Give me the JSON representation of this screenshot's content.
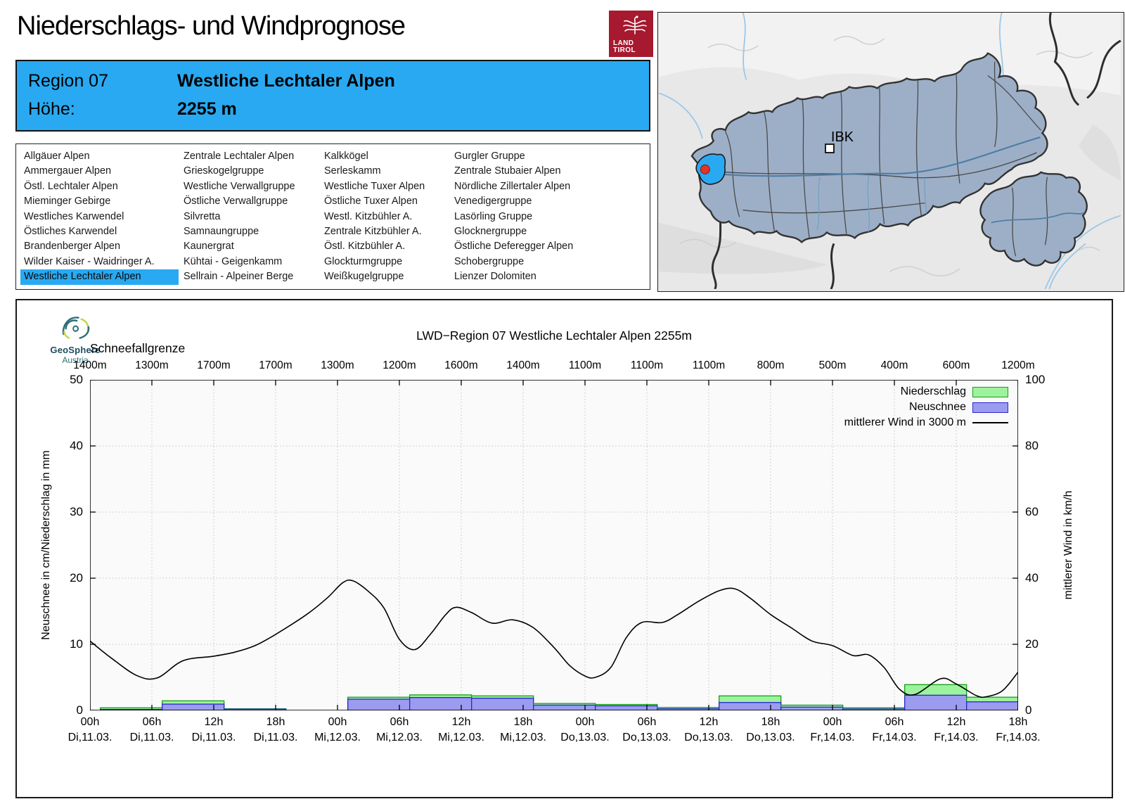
{
  "page": {
    "title": "Niederschlags- und Windprognose"
  },
  "logo": {
    "line1": "LAND",
    "line2": "TIROL"
  },
  "info": {
    "region_label": "Region 07",
    "region_name": "Westliche Lechtaler Alpen",
    "altitude_label": "Höhe:",
    "altitude_value": "2255 m"
  },
  "region_list": {
    "selected_name": "Westliche Lechtaler Alpen",
    "columns": [
      [
        "Allgäuer Alpen",
        "Ammergauer Alpen",
        "Östl. Lechtaler Alpen",
        "Mieminger Gebirge",
        "Westliches Karwendel",
        "Östliches Karwendel",
        "Brandenberger Alpen",
        "Wilder Kaiser - Waidringer A.",
        "Westliche Lechtaler Alpen"
      ],
      [
        "Zentrale Lechtaler Alpen",
        "Grieskogelgruppe",
        "Westliche Verwallgruppe",
        "Östliche Verwallgruppe",
        "Silvretta",
        "Samnaungruppe",
        "Kaunergrat",
        "Kühtai - Geigenkamm",
        "Sellrain - Alpeiner Berge"
      ],
      [
        "Kalkkögel",
        "Serleskamm",
        "Westliche Tuxer Alpen",
        "Östliche Tuxer Alpen",
        "Westl. Kitzbühler A.",
        "Zentrale Kitzbühler A.",
        "Östl. Kitzbühler A.",
        "Glockturmgruppe",
        "Weißkugelgruppe"
      ],
      [
        "Gurgler Gruppe",
        "Zentrale Stubaier Alpen",
        "Nördliche Zillertaler Alpen",
        "Venedigergruppe",
        "Lasörling Gruppe",
        "Glocknergruppe",
        "Östliche Deferegger Alpen",
        "Schobergruppe",
        "Lienzer Dolomiten"
      ]
    ]
  },
  "map": {
    "city_label": "IBK"
  },
  "geosphere": {
    "name": "GeoSphere",
    "country": "Austria"
  },
  "colors": {
    "accent_blue": "#29A9F1",
    "logo_red": "#A6192E",
    "bar_green_fill": "#9DF29D",
    "bar_green_stroke": "#16A016",
    "bar_blue_fill": "#9B9BF0",
    "bar_blue_stroke": "#2828CC",
    "wind_line": "#000000",
    "map_region_fill": "#9DAFC7",
    "plot_bg": "#FAFAFA"
  },
  "chart_data": {
    "type": "bar",
    "title": "LWD−Region 07 Westliche Lechtaler Alpen 2255m",
    "snowline_label": "Schneefallgrenze",
    "snowline_values": [
      "1400m",
      "1300m",
      "1700m",
      "1700m",
      "1300m",
      "1200m",
      "1600m",
      "1400m",
      "1100m",
      "1100m",
      "1100m",
      "800m",
      "500m",
      "400m",
      "600m",
      "1200m"
    ],
    "ylabel_left": "Neuschnee in cm/Niederschlag in mm",
    "ylabel_right": "mittlerer Wind in km/h",
    "ylim_left": [
      0,
      50
    ],
    "ylim_right": [
      0,
      100
    ],
    "yticks_left": [
      0,
      10,
      20,
      30,
      40,
      50
    ],
    "yticks_right": [
      0,
      20,
      40,
      60,
      80,
      100
    ],
    "x_span_hours": 90,
    "grid": true,
    "legend_position": "top-right",
    "legend": [
      {
        "label": "Niederschlag",
        "type": "box",
        "fill": "#9DF29D",
        "stroke": "#16A016"
      },
      {
        "label": "Neuschnee",
        "type": "box",
        "fill": "#9B9BF0",
        "stroke": "#2828CC"
      },
      {
        "label": "mittlerer Wind in 3000 m",
        "type": "line",
        "stroke": "#000000"
      }
    ],
    "xticks": [
      {
        "hour": "00h",
        "day": "Di,11.03."
      },
      {
        "hour": "06h",
        "day": "Di,11.03."
      },
      {
        "hour": "12h",
        "day": "Di,11.03."
      },
      {
        "hour": "18h",
        "day": "Di,11.03."
      },
      {
        "hour": "00h",
        "day": "Mi,12.03."
      },
      {
        "hour": "06h",
        "day": "Mi,12.03."
      },
      {
        "hour": "12h",
        "day": "Mi,12.03."
      },
      {
        "hour": "18h",
        "day": "Mi,12.03."
      },
      {
        "hour": "00h",
        "day": "Do,13.03."
      },
      {
        "hour": "06h",
        "day": "Do,13.03."
      },
      {
        "hour": "12h",
        "day": "Do,13.03."
      },
      {
        "hour": "18h",
        "day": "Do,13.03."
      },
      {
        "hour": "00h",
        "day": "Fr,14.03."
      },
      {
        "hour": "06h",
        "day": "Fr,14.03."
      },
      {
        "hour": "12h",
        "day": "Fr,14.03."
      },
      {
        "hour": "18h",
        "day": "Fr,14.03."
      }
    ],
    "bars_unit": "hours from Di 00h; niederschlag_mm = green total height; neuschnee_cm = blue height",
    "bars": [
      {
        "from": 1,
        "to": 7,
        "niederschlag_mm": 0.4,
        "neuschnee_cm": 0.15
      },
      {
        "from": 7,
        "to": 13,
        "niederschlag_mm": 1.45,
        "neuschnee_cm": 0.95
      },
      {
        "from": 13,
        "to": 19,
        "niederschlag_mm": 0.25,
        "neuschnee_cm": 0.2
      },
      {
        "from": 25,
        "to": 31,
        "niederschlag_mm": 2.0,
        "neuschnee_cm": 1.7
      },
      {
        "from": 31,
        "to": 37,
        "niederschlag_mm": 2.35,
        "neuschnee_cm": 1.95
      },
      {
        "from": 37,
        "to": 43,
        "niederschlag_mm": 2.2,
        "neuschnee_cm": 1.85
      },
      {
        "from": 43,
        "to": 49,
        "niederschlag_mm": 1.05,
        "neuschnee_cm": 0.8
      },
      {
        "from": 49,
        "to": 55,
        "niederschlag_mm": 0.9,
        "neuschnee_cm": 0.7
      },
      {
        "from": 55,
        "to": 61,
        "niederschlag_mm": 0.45,
        "neuschnee_cm": 0.25
      },
      {
        "from": 61,
        "to": 67,
        "niederschlag_mm": 2.2,
        "neuschnee_cm": 1.2
      },
      {
        "from": 67,
        "to": 73,
        "niederschlag_mm": 0.8,
        "neuschnee_cm": 0.5
      },
      {
        "from": 73,
        "to": 79,
        "niederschlag_mm": 0.4,
        "neuschnee_cm": 0.22
      },
      {
        "from": 79,
        "to": 85,
        "niederschlag_mm": 3.9,
        "neuschnee_cm": 2.3
      },
      {
        "from": 85,
        "to": 90,
        "niederschlag_mm": 2.0,
        "neuschnee_cm": 1.3
      }
    ],
    "wind_kmh": [
      [
        0,
        21
      ],
      [
        2,
        16
      ],
      [
        4.5,
        10.6
      ],
      [
        6.5,
        9.8
      ],
      [
        9,
        15
      ],
      [
        12,
        16.4
      ],
      [
        14,
        17.6
      ],
      [
        16,
        19.6
      ],
      [
        18,
        23
      ],
      [
        21,
        29
      ],
      [
        23,
        34
      ],
      [
        24.5,
        38.6
      ],
      [
        25.5,
        39.2
      ],
      [
        27,
        36
      ],
      [
        28.5,
        31
      ],
      [
        30,
        21.5
      ],
      [
        31.5,
        18.4
      ],
      [
        33,
        23
      ],
      [
        34.5,
        29
      ],
      [
        35.5,
        31.2
      ],
      [
        37,
        29.6
      ],
      [
        39,
        26.4
      ],
      [
        41,
        27.4
      ],
      [
        43,
        25
      ],
      [
        45,
        19
      ],
      [
        46.5,
        13.6
      ],
      [
        48,
        10.4
      ],
      [
        49,
        10.0
      ],
      [
        50.5,
        13
      ],
      [
        52,
        22
      ],
      [
        53.5,
        26.6
      ],
      [
        55.5,
        26.6
      ],
      [
        57,
        29
      ],
      [
        59,
        33
      ],
      [
        61,
        36.2
      ],
      [
        62.5,
        36.8
      ],
      [
        64,
        34
      ],
      [
        66,
        29
      ],
      [
        68,
        25
      ],
      [
        70,
        21
      ],
      [
        72,
        19.6
      ],
      [
        74,
        16.6
      ],
      [
        75.5,
        16.8
      ],
      [
        77,
        13
      ],
      [
        78.5,
        6.4
      ],
      [
        80,
        4.8
      ],
      [
        82.5,
        9.6
      ],
      [
        84,
        8
      ],
      [
        86,
        4.4
      ],
      [
        87,
        4.2
      ],
      [
        88.5,
        6
      ],
      [
        90,
        11.6
      ]
    ]
  }
}
